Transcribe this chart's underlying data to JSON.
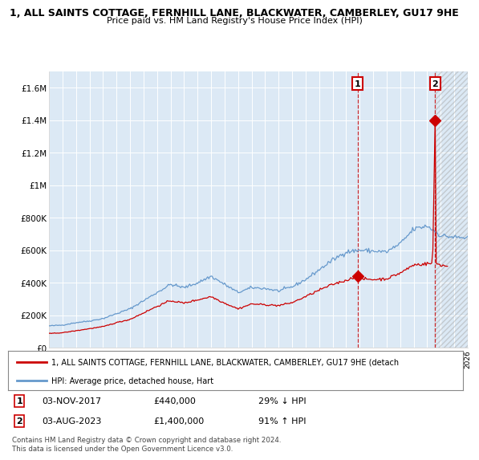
{
  "title_line1": "1, ALL SAINTS COTTAGE, FERNHILL LANE, BLACKWATER, CAMBERLEY, GU17 9HE",
  "title_line2": "Price paid vs. HM Land Registry's House Price Index (HPI)",
  "background_color": "#ffffff",
  "plot_bg_color": "#dce9f5",
  "plot_bg_color_left": "#dce9f5",
  "grid_color": "#ffffff",
  "hpi_color": "#6699cc",
  "price_color": "#cc0000",
  "marker1_year": 2017.84,
  "marker1_price": 440000,
  "marker2_year": 2023.58,
  "marker2_price": 1400000,
  "legend_line1": "1, ALL SAINTS COTTAGE, FERNHILL LANE, BLACKWATER, CAMBERLEY, GU17 9HE (detach",
  "legend_line2": "HPI: Average price, detached house, Hart",
  "note1_label": "1",
  "note1_date": "03-NOV-2017",
  "note1_price": "£440,000",
  "note1_hpi": "29% ↓ HPI",
  "note2_label": "2",
  "note2_date": "03-AUG-2023",
  "note2_price": "£1,400,000",
  "note2_hpi": "91% ↑ HPI",
  "copyright": "Contains HM Land Registry data © Crown copyright and database right 2024.\nThis data is licensed under the Open Government Licence v3.0.",
  "yticks": [
    0,
    200000,
    400000,
    600000,
    800000,
    1000000,
    1200000,
    1400000,
    1600000
  ],
  "ytick_labels": [
    "£0",
    "£200K",
    "£400K",
    "£600K",
    "£800K",
    "£1M",
    "£1.2M",
    "£1.4M",
    "£1.6M"
  ]
}
